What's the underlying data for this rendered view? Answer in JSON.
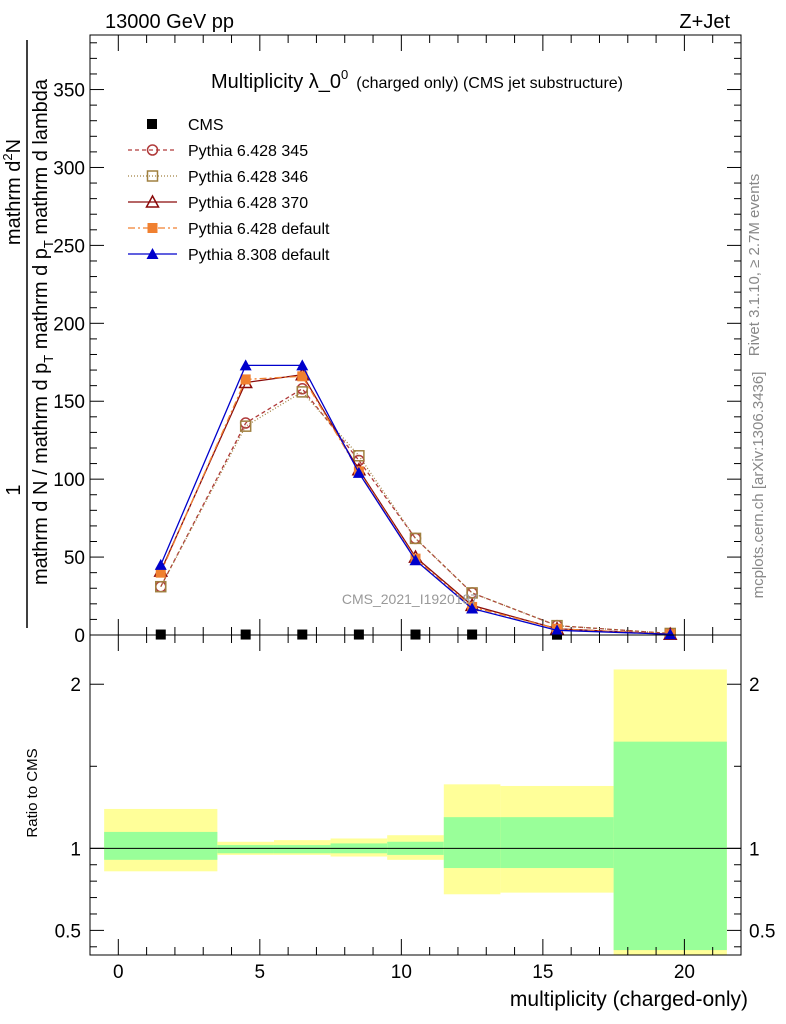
{
  "header": {
    "left": "13000 GeV pp",
    "right": "Z+Jet"
  },
  "side": {
    "rivet": "Rivet 3.1.10, ≥ 2.7M events",
    "mcplots": "mcplots.cern.ch [arXiv:1306.3436]"
  },
  "chart_data": {
    "type": "line",
    "title_main": "Multiplicity λ_0",
    "title_sup": "0",
    "title_small": "(charged only) (CMS jet substructure)",
    "watermark": "CMS_2021_I1920187",
    "ylabel_top": {
      "den_prefix": "mathrm d N / mathrm d p",
      "den_sub": "T",
      "den_suffix": " mathrm d p",
      "den_sub2": "T",
      "den_tail": " mathrm d lambda",
      "num": "1",
      "num2": "mathrm d",
      "num2_sup": "2",
      "num2_tail": "N"
    },
    "xlabel": "multiplicity (charged-only)",
    "ratio_ylabel": "Ratio to CMS",
    "xlim": [
      -1,
      22
    ],
    "ylim": [
      0,
      385
    ],
    "ratio_ylim": [
      0.35,
      2.3
    ],
    "x_ticks": [
      0,
      5,
      10,
      15,
      20
    ],
    "x_tick_labels": [
      "0",
      "5",
      "10",
      "15",
      "20"
    ],
    "y_ticks": [
      0,
      50,
      100,
      150,
      200,
      250,
      300,
      350
    ],
    "y_tick_labels": [
      "0",
      "50",
      "100",
      "150",
      "200",
      "250",
      "300",
      "350"
    ],
    "ratio_ticks": [
      0.5,
      1,
      2
    ],
    "ratio_tick_labels": [
      "0.5",
      "1",
      "2"
    ],
    "x": [
      1.5,
      4.5,
      6.5,
      8.5,
      10.5,
      12.5,
      15.5,
      19.5
    ],
    "series": [
      {
        "name": "CMS",
        "color": "#000000",
        "marker": "square-filled",
        "dash": "none",
        "values": [
          0.3,
          0.3,
          0.3,
          0.3,
          0.3,
          0.3,
          0.2,
          0.1
        ]
      },
      {
        "name": "Pythia 6.428 345",
        "color": "#b03a3a",
        "marker": "circle-open",
        "dash": "4,3",
        "values": [
          31,
          136,
          158,
          112,
          62,
          27,
          6,
          1
        ]
      },
      {
        "name": "Pythia 6.428 346",
        "color": "#a08040",
        "marker": "square-open",
        "dash": "1,2",
        "values": [
          31,
          134,
          156,
          115,
          62,
          27,
          6,
          1
        ]
      },
      {
        "name": "Pythia 6.428 370",
        "color": "#8a0a0a",
        "marker": "triangle-open",
        "dash": "none",
        "values": [
          41,
          162,
          167,
          106,
          50,
          19,
          4,
          0.5
        ]
      },
      {
        "name": "Pythia 6.428 default",
        "color": "#f08030",
        "marker": "square-filled",
        "dash": "7,3,2,3",
        "values": [
          40,
          164,
          166,
          105,
          49,
          18,
          4,
          0.5
        ]
      },
      {
        "name": "Pythia 8.308 default",
        "color": "#0000cc",
        "marker": "triangle-filled",
        "dash": "none",
        "values": [
          45,
          173,
          173,
          104,
          48,
          17,
          3,
          0.5
        ]
      }
    ],
    "ratio_bands": [
      {
        "x0": -0.5,
        "x1": 3.5,
        "stat": [
          0.93,
          1.1
        ],
        "total": [
          0.86,
          1.24
        ]
      },
      {
        "x0": 3.5,
        "x1": 5.5,
        "stat": [
          0.97,
          1.02
        ],
        "total": [
          0.96,
          1.04
        ]
      },
      {
        "x0": 5.5,
        "x1": 7.5,
        "stat": [
          0.97,
          1.02
        ],
        "total": [
          0.96,
          1.05
        ]
      },
      {
        "x0": 7.5,
        "x1": 9.5,
        "stat": [
          0.97,
          1.03
        ],
        "total": [
          0.95,
          1.06
        ]
      },
      {
        "x0": 9.5,
        "x1": 11.5,
        "stat": [
          0.96,
          1.04
        ],
        "total": [
          0.93,
          1.08
        ]
      },
      {
        "x0": 11.5,
        "x1": 13.5,
        "stat": [
          0.88,
          1.19
        ],
        "total": [
          0.72,
          1.39
        ]
      },
      {
        "x0": 13.5,
        "x1": 17.5,
        "stat": [
          0.88,
          1.19
        ],
        "total": [
          0.73,
          1.38
        ]
      },
      {
        "x0": 17.5,
        "x1": 21.5,
        "stat": [
          0.38,
          1.65
        ],
        "total": [
          0.35,
          2.09
        ]
      }
    ]
  }
}
